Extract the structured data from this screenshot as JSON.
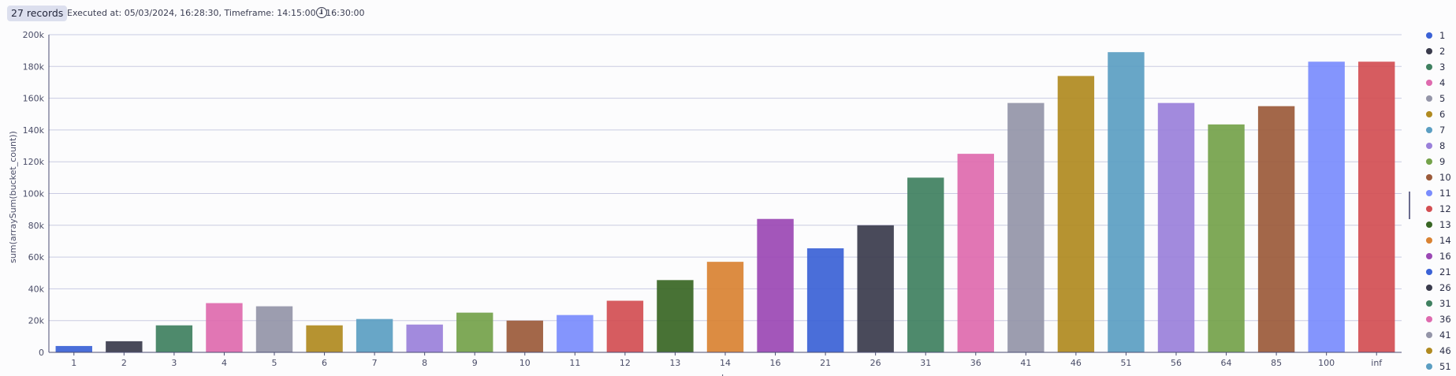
{
  "header": {
    "record_count": "27 records",
    "execution_info": "Executed at: 05/03/2024, 16:28:30, Timeframe: 14:15:00 – 16:30:00",
    "info_icon": "info-circle-icon"
  },
  "chart_data": {
    "type": "bar",
    "ylabel": "sum(arraySum(bucket_count))",
    "xlabel": "le",
    "ylim": [
      0,
      200000
    ],
    "y_ticks": [
      0,
      20000,
      40000,
      60000,
      80000,
      100000,
      120000,
      140000,
      160000,
      180000,
      200000
    ],
    "y_tick_labels": [
      "0",
      "20k",
      "40k",
      "60k",
      "80k",
      "100k",
      "120k",
      "140k",
      "160k",
      "180k",
      "200k"
    ],
    "grid": true,
    "legend_position": "right",
    "categories": [
      "1",
      "2",
      "3",
      "4",
      "5",
      "6",
      "7",
      "8",
      "9",
      "10",
      "11",
      "12",
      "13",
      "14",
      "16",
      "21",
      "26",
      "31",
      "36",
      "41",
      "46",
      "51",
      "56",
      "64",
      "85",
      "100",
      "inf"
    ],
    "values": [
      4000,
      7000,
      17000,
      31000,
      29000,
      17000,
      21000,
      17500,
      25000,
      20000,
      23500,
      32500,
      45500,
      57000,
      84000,
      65500,
      80000,
      110000,
      125000,
      157000,
      174000,
      189000,
      157000,
      143500,
      155000,
      183000,
      183000
    ],
    "colors": [
      "#3b62d6",
      "#3a3b4c",
      "#3f8060",
      "#de6aae",
      "#9495a8",
      "#b08a20",
      "#5b9ec2",
      "#9a80da",
      "#74a24a",
      "#9b5a3a",
      "#7a8cfd",
      "#d34e52",
      "#386624",
      "#d98232",
      "#9b48b4",
      "#3b62d6",
      "#3a3b4c",
      "#3f8060",
      "#de6aae",
      "#9495a8",
      "#b08a20",
      "#5b9ec2",
      "#9a80da",
      "#74a24a",
      "#9b5a3a",
      "#7a8cfd",
      "#d34e52"
    ],
    "legend": [
      "1",
      "2",
      "3",
      "4",
      "5",
      "6",
      "7",
      "8",
      "9",
      "10",
      "11",
      "12",
      "13",
      "14",
      "16",
      "21",
      "26",
      "31",
      "36",
      "41",
      "46",
      "51"
    ]
  }
}
